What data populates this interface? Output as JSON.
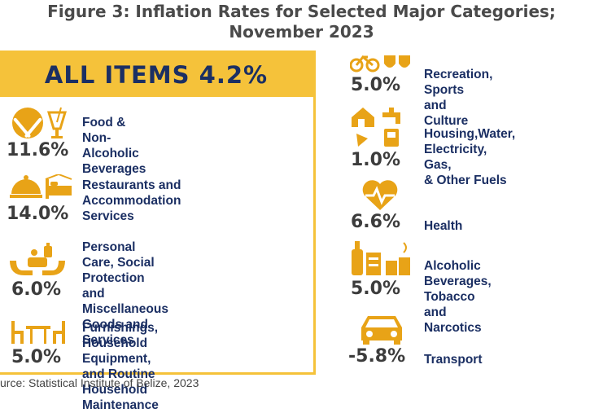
{
  "figure": {
    "title_line1": "Figure 3: Inflation Rates for Selected Major Categories;",
    "title_line2": "November 2023"
  },
  "all_items": {
    "label": "ALL ITEMS 4.2%"
  },
  "left_categories": [
    {
      "rate": "11.6%",
      "label": "Food &\nNon-Alcoholic\nBeverages",
      "icon": "plate-fork-knife-drink-icon"
    },
    {
      "rate": "14.0%",
      "label": "Restaurants and\nAccommodation\nServices",
      "icon": "cloche-bed-icon"
    },
    {
      "rate": "6.0%",
      "label": "Personal Care, Social\nProtection and\nMiscellaneous Goods and\nServices",
      "icon": "hands-care-icon"
    },
    {
      "rate": "5.0%",
      "label": "Furnishings, Household\nEquipment, and Routine\nHousehold Maintenance",
      "icon": "table-chairs-icon"
    }
  ],
  "right_categories": [
    {
      "rate": "5.0%",
      "label": "Recreation, Sports\nand Culture",
      "icon": "bicycle-masks-icon"
    },
    {
      "rate": "1.0%",
      "label": "Housing,Water,\nElectricity, Gas,\n& Other Fuels",
      "icon": "house-tap-fuel-icon"
    },
    {
      "rate": "6.6%",
      "label": "Health",
      "icon": "heart-pulse-icon"
    },
    {
      "rate": "5.0%",
      "label": "Alcoholic\nBeverages, Tobacco\nand Narcotics",
      "icon": "bottle-glass-cigarette-icon"
    },
    {
      "rate": "-5.8%",
      "label": "Transport",
      "icon": "car-icon"
    }
  ],
  "source": {
    "text": "urce: Statistical Institute of Belize, 2023"
  },
  "colors": {
    "accent": "#f5c23a",
    "icon": "#e8a317",
    "label": "#1b2f63",
    "rate": "#3c3c3c"
  }
}
